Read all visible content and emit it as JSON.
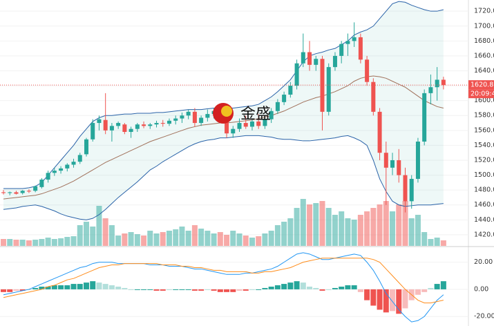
{
  "chart_data": {
    "type": "candlestick",
    "watermark": "金盛",
    "time_label": "20:09:49",
    "up_color": "#26a69a",
    "down_color": "#ef5350",
    "ylim": [
      1406,
      1735
    ],
    "yticks": [
      {
        "value": 1420,
        "label": "1420.00"
      },
      {
        "value": 1440,
        "label": "1440.00"
      },
      {
        "value": 1460,
        "label": "1460.00"
      },
      {
        "value": 1480,
        "label": "1480.00"
      },
      {
        "value": 1500,
        "label": "1500.00"
      },
      {
        "value": 1520,
        "label": "1520.00"
      },
      {
        "value": 1540,
        "label": "1540.00"
      },
      {
        "value": 1560,
        "label": "1560.00"
      },
      {
        "value": 1580,
        "label": "1580.00"
      },
      {
        "value": 1600,
        "label": "1600.00"
      },
      {
        "value": 1620,
        "label": "1620.00"
      },
      {
        "value": 1640,
        "label": "1640.00"
      },
      {
        "value": 1660,
        "label": "1660.00"
      },
      {
        "value": 1680,
        "label": "1680.00"
      },
      {
        "value": 1700,
        "label": "1700.00"
      },
      {
        "value": 1720,
        "label": "1720.00"
      }
    ],
    "grid": true,
    "open": [
      1477,
      1476,
      1477,
      1476,
      1479,
      1479,
      1484,
      1494,
      1503,
      1506,
      1509,
      1514,
      1518,
      1528,
      1548,
      1570,
      1574,
      1560,
      1566,
      1568,
      1558,
      1562,
      1568,
      1566,
      1568,
      1570,
      1569,
      1573,
      1576,
      1580,
      1585,
      1570,
      1577,
      1582,
      1586,
      1580,
      1556,
      1562,
      1570,
      1565,
      1572,
      1566,
      1575,
      1586,
      1598,
      1608,
      1620,
      1650,
      1665,
      1648,
      1656,
      1585,
      1645,
      1660,
      1676,
      1680,
      1685,
      1655,
      1625,
      1585,
      1530,
      1510,
      1520,
      1500,
      1465,
      1495,
      1545,
      1610,
      1618,
      1628
    ],
    "high": [
      1480,
      1478,
      1479,
      1480,
      1481,
      1486,
      1496,
      1506,
      1510,
      1512,
      1516,
      1522,
      1530,
      1550,
      1575,
      1580,
      1610,
      1570,
      1572,
      1570,
      1565,
      1570,
      1572,
      1570,
      1573,
      1574,
      1576,
      1580,
      1584,
      1588,
      1590,
      1580,
      1588,
      1590,
      1590,
      1585,
      1566,
      1576,
      1580,
      1575,
      1582,
      1578,
      1590,
      1602,
      1612,
      1625,
      1655,
      1690,
      1680,
      1660,
      1660,
      1650,
      1665,
      1680,
      1690,
      1705,
      1690,
      1660,
      1630,
      1590,
      1545,
      1530,
      1535,
      1510,
      1500,
      1550,
      1615,
      1635,
      1645,
      1632
    ],
    "low": [
      1474,
      1473,
      1474,
      1474,
      1476,
      1477,
      1482,
      1490,
      1499,
      1502,
      1505,
      1510,
      1515,
      1525,
      1545,
      1560,
      1555,
      1545,
      1562,
      1555,
      1550,
      1558,
      1563,
      1562,
      1564,
      1565,
      1566,
      1568,
      1570,
      1575,
      1565,
      1566,
      1572,
      1576,
      1578,
      1550,
      1550,
      1558,
      1562,
      1560,
      1562,
      1562,
      1570,
      1582,
      1594,
      1604,
      1615,
      1645,
      1640,
      1640,
      1560,
      1580,
      1640,
      1650,
      1660,
      1672,
      1650,
      1620,
      1580,
      1520,
      1460,
      1500,
      1490,
      1450,
      1455,
      1490,
      1540,
      1595,
      1600,
      1615
    ],
    "close": [
      1476,
      1477,
      1475,
      1479,
      1478,
      1485,
      1494,
      1503,
      1506,
      1509,
      1514,
      1518,
      1527,
      1548,
      1570,
      1575,
      1560,
      1566,
      1570,
      1558,
      1562,
      1568,
      1566,
      1568,
      1570,
      1569,
      1573,
      1576,
      1580,
      1585,
      1570,
      1577,
      1582,
      1586,
      1580,
      1556,
      1562,
      1570,
      1565,
      1572,
      1566,
      1575,
      1586,
      1598,
      1608,
      1620,
      1650,
      1665,
      1648,
      1656,
      1585,
      1645,
      1660,
      1676,
      1680,
      1685,
      1655,
      1625,
      1585,
      1530,
      1510,
      1520,
      1500,
      1465,
      1495,
      1545,
      1610,
      1618,
      1628,
      1620.87
    ],
    "bb_upper": [
      1482,
      1482,
      1482,
      1482,
      1483,
      1485,
      1490,
      1500,
      1510,
      1520,
      1530,
      1540,
      1552,
      1562,
      1572,
      1577,
      1580,
      1580,
      1581,
      1582,
      1582,
      1583,
      1583,
      1583,
      1584,
      1584,
      1585,
      1586,
      1587,
      1588,
      1588,
      1588,
      1589,
      1590,
      1590,
      1590,
      1590,
      1591,
      1592,
      1593,
      1595,
      1600,
      1605,
      1612,
      1620,
      1628,
      1640,
      1652,
      1660,
      1663,
      1665,
      1668,
      1670,
      1675,
      1680,
      1688,
      1692,
      1695,
      1700,
      1710,
      1720,
      1730,
      1733,
      1732,
      1728,
      1725,
      1722,
      1720,
      1720,
      1722
    ],
    "bb_middle": [
      1468,
      1469,
      1470,
      1471,
      1472,
      1473,
      1475,
      1478,
      1481,
      1484,
      1488,
      1492,
      1497,
      1502,
      1507,
      1512,
      1517,
      1521,
      1525,
      1529,
      1533,
      1537,
      1541,
      1545,
      1548,
      1551,
      1554,
      1557,
      1560,
      1563,
      1565,
      1567,
      1568,
      1569,
      1570,
      1570,
      1571,
      1572,
      1573,
      1574,
      1576,
      1578,
      1580,
      1583,
      1586,
      1590,
      1594,
      1598,
      1601,
      1604,
      1606,
      1609,
      1612,
      1616,
      1620,
      1626,
      1630,
      1632,
      1633,
      1632,
      1630,
      1626,
      1622,
      1618,
      1612,
      1606,
      1600,
      1596,
      1592,
      1590
    ],
    "bb_lower": [
      1454,
      1455,
      1456,
      1458,
      1459,
      1460,
      1458,
      1455,
      1452,
      1448,
      1445,
      1443,
      1441,
      1440,
      1442,
      1447,
      1454,
      1462,
      1470,
      1477,
      1484,
      1491,
      1499,
      1507,
      1512,
      1518,
      1523,
      1528,
      1533,
      1538,
      1542,
      1545,
      1547,
      1548,
      1550,
      1550,
      1551,
      1552,
      1553,
      1553,
      1553,
      1552,
      1551,
      1549,
      1548,
      1548,
      1547,
      1546,
      1546,
      1547,
      1548,
      1549,
      1550,
      1552,
      1553,
      1550,
      1546,
      1540,
      1520,
      1495,
      1478,
      1465,
      1460,
      1458,
      1459,
      1460,
      1460,
      1460,
      1461,
      1462
    ],
    "volume": [
      10,
      10,
      9,
      9,
      8,
      9,
      10,
      12,
      10,
      11,
      13,
      14,
      30,
      35,
      28,
      58,
      40,
      30,
      15,
      18,
      20,
      17,
      15,
      22,
      18,
      20,
      22,
      24,
      28,
      22,
      30,
      25,
      22,
      18,
      20,
      16,
      22,
      18,
      15,
      12,
      14,
      18,
      22,
      30,
      35,
      40,
      55,
      68,
      60,
      62,
      65,
      55,
      45,
      50,
      40,
      38,
      45,
      50,
      55,
      60,
      65,
      50,
      60,
      65,
      40,
      45,
      20,
      10,
      12,
      8
    ],
    "macd_ylim": [
      -27,
      31
    ],
    "macd_yticks": [
      {
        "value": 20,
        "label": "20.00"
      },
      {
        "value": 0,
        "label": "0.00"
      },
      {
        "value": -20,
        "label": "-20.00"
      }
    ],
    "macd_hist": [
      -2,
      -2,
      -1,
      -1,
      0,
      1,
      2,
      2,
      3,
      3,
      3,
      4,
      4,
      5,
      6,
      5,
      4,
      3,
      2,
      1,
      0,
      0,
      0,
      0,
      -1,
      -1,
      0,
      0,
      0,
      0,
      -1,
      -1,
      0,
      -1,
      -2,
      -2,
      -2,
      -1,
      -1,
      0,
      0,
      1,
      2,
      3,
      4,
      5,
      6,
      5,
      2,
      1,
      -1,
      0,
      1,
      2,
      3,
      3,
      -2,
      -8,
      -12,
      -15,
      -17,
      -16,
      -18,
      -14,
      -8,
      -4,
      -2,
      1,
      4,
      6
    ],
    "macd_dif": [
      -4,
      -3,
      -2,
      -1,
      0,
      2,
      4,
      6,
      8,
      10,
      12,
      14,
      16,
      17,
      19,
      20,
      20,
      20,
      19,
      19,
      19,
      19,
      19,
      18,
      18,
      18,
      17,
      17,
      17,
      16,
      15,
      15,
      14,
      13,
      12,
      11,
      11,
      11,
      12,
      12,
      13,
      14,
      15,
      17,
      20,
      23,
      26,
      27,
      26,
      24,
      22,
      22,
      23,
      24,
      25,
      26,
      25,
      20,
      14,
      6,
      -3,
      -9,
      -15,
      -20,
      -24,
      -23,
      -20,
      -14,
      -8,
      -4
    ],
    "macd_dea": [
      -6,
      -5,
      -4,
      -3,
      -2,
      -1,
      0,
      2,
      3,
      5,
      7,
      8,
      10,
      12,
      14,
      16,
      17,
      18,
      18,
      19,
      19,
      19,
      19,
      19,
      19,
      18,
      18,
      18,
      17,
      17,
      16,
      16,
      15,
      14,
      14,
      13,
      13,
      13,
      13,
      12,
      12,
      13,
      13,
      14,
      15,
      16,
      18,
      20,
      21,
      22,
      23,
      23,
      23,
      23,
      23,
      23,
      23,
      23,
      22,
      20,
      15,
      10,
      5,
      0,
      -4,
      -8,
      -10,
      -10,
      -9,
      -8
    ]
  }
}
